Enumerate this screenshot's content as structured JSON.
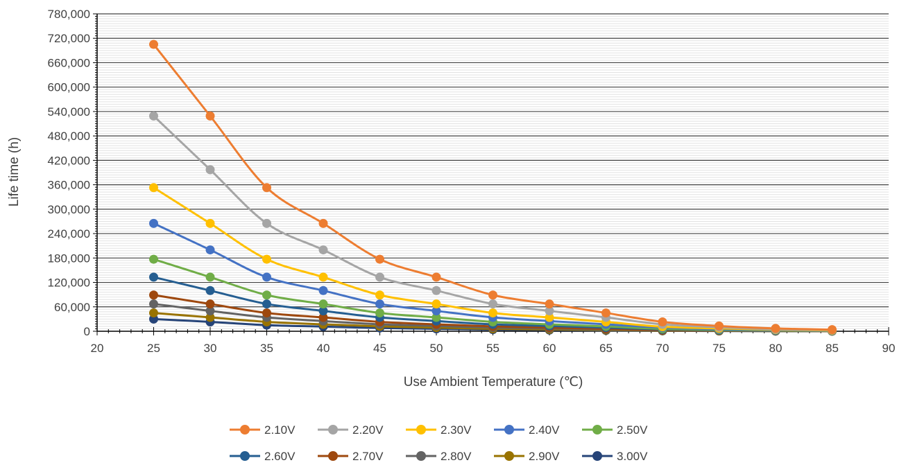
{
  "chart_data": {
    "type": "line",
    "title": "",
    "xlabel": "Use Ambient Temperature (℃)",
    "ylabel": "Life time (h)",
    "xlim": [
      20,
      90
    ],
    "ylim": [
      0,
      780000
    ],
    "x_ticks": [
      20,
      25,
      30,
      35,
      40,
      45,
      50,
      55,
      60,
      65,
      70,
      75,
      80,
      85,
      90
    ],
    "y_ticks": [
      0,
      60000,
      120000,
      180000,
      240000,
      300000,
      360000,
      420000,
      480000,
      540000,
      600000,
      660000,
      720000,
      780000
    ],
    "y_tick_labels": [
      "0",
      "60,000",
      "120,000",
      "180,000",
      "240,000",
      "300,000",
      "360,000",
      "420,000",
      "480,000",
      "540,000",
      "600,000",
      "660,000",
      "720,000",
      "780,000"
    ],
    "grid": "horizontal major and minor",
    "legend_position": "bottom",
    "x": [
      25,
      30,
      35,
      40,
      45,
      50,
      55,
      60,
      65,
      70,
      75,
      80,
      85
    ],
    "series": [
      {
        "name": "2.10V",
        "color": "#ED7D31",
        "values": [
          705000,
          529000,
          353000,
          265000,
          177000,
          133000,
          89000,
          67000,
          45000,
          23000,
          13000,
          7000,
          4000
        ]
      },
      {
        "name": "2.20V",
        "color": "#A5A5A5",
        "values": [
          529000,
          397000,
          265000,
          200000,
          133000,
          100000,
          67000,
          50000,
          34000,
          17000,
          10000,
          5000,
          3000
        ]
      },
      {
        "name": "2.30V",
        "color": "#FFC000",
        "values": [
          353000,
          265000,
          177000,
          133000,
          89000,
          67000,
          45000,
          34000,
          23000,
          11000,
          7000,
          4000,
          2000
        ]
      },
      {
        "name": "2.40V",
        "color": "#4472C4",
        "values": [
          265000,
          200000,
          133000,
          100000,
          67000,
          50000,
          34000,
          25000,
          17000,
          9000,
          5000,
          3000,
          1500
        ]
      },
      {
        "name": "2.50V",
        "color": "#70AD47",
        "values": [
          177000,
          133000,
          89000,
          67000,
          45000,
          34000,
          23000,
          17000,
          12000,
          6000,
          3500,
          2000,
          1000
        ]
      },
      {
        "name": "2.60V",
        "color": "#255E91",
        "values": [
          133000,
          100000,
          67000,
          50000,
          34000,
          25000,
          17000,
          13000,
          9000,
          4500,
          2500,
          1500,
          800
        ]
      },
      {
        "name": "2.70V",
        "color": "#9E480E",
        "values": [
          89000,
          67000,
          45000,
          34000,
          23000,
          17000,
          12000,
          9000,
          6000,
          3000,
          1700,
          1000,
          500
        ]
      },
      {
        "name": "2.80V",
        "color": "#636363",
        "values": [
          67000,
          50000,
          34000,
          25000,
          17000,
          13000,
          9000,
          7000,
          4500,
          2300,
          1300,
          700,
          400
        ]
      },
      {
        "name": "2.90V",
        "color": "#997300",
        "values": [
          45000,
          34000,
          23000,
          17000,
          12000,
          9000,
          6000,
          4500,
          3000,
          1500,
          900,
          500,
          300
        ]
      },
      {
        "name": "3.00V",
        "color": "#264478",
        "values": [
          30000,
          23000,
          15000,
          11500,
          8000,
          6000,
          4000,
          3000,
          2000,
          1000,
          600,
          300,
          200
        ]
      }
    ]
  }
}
